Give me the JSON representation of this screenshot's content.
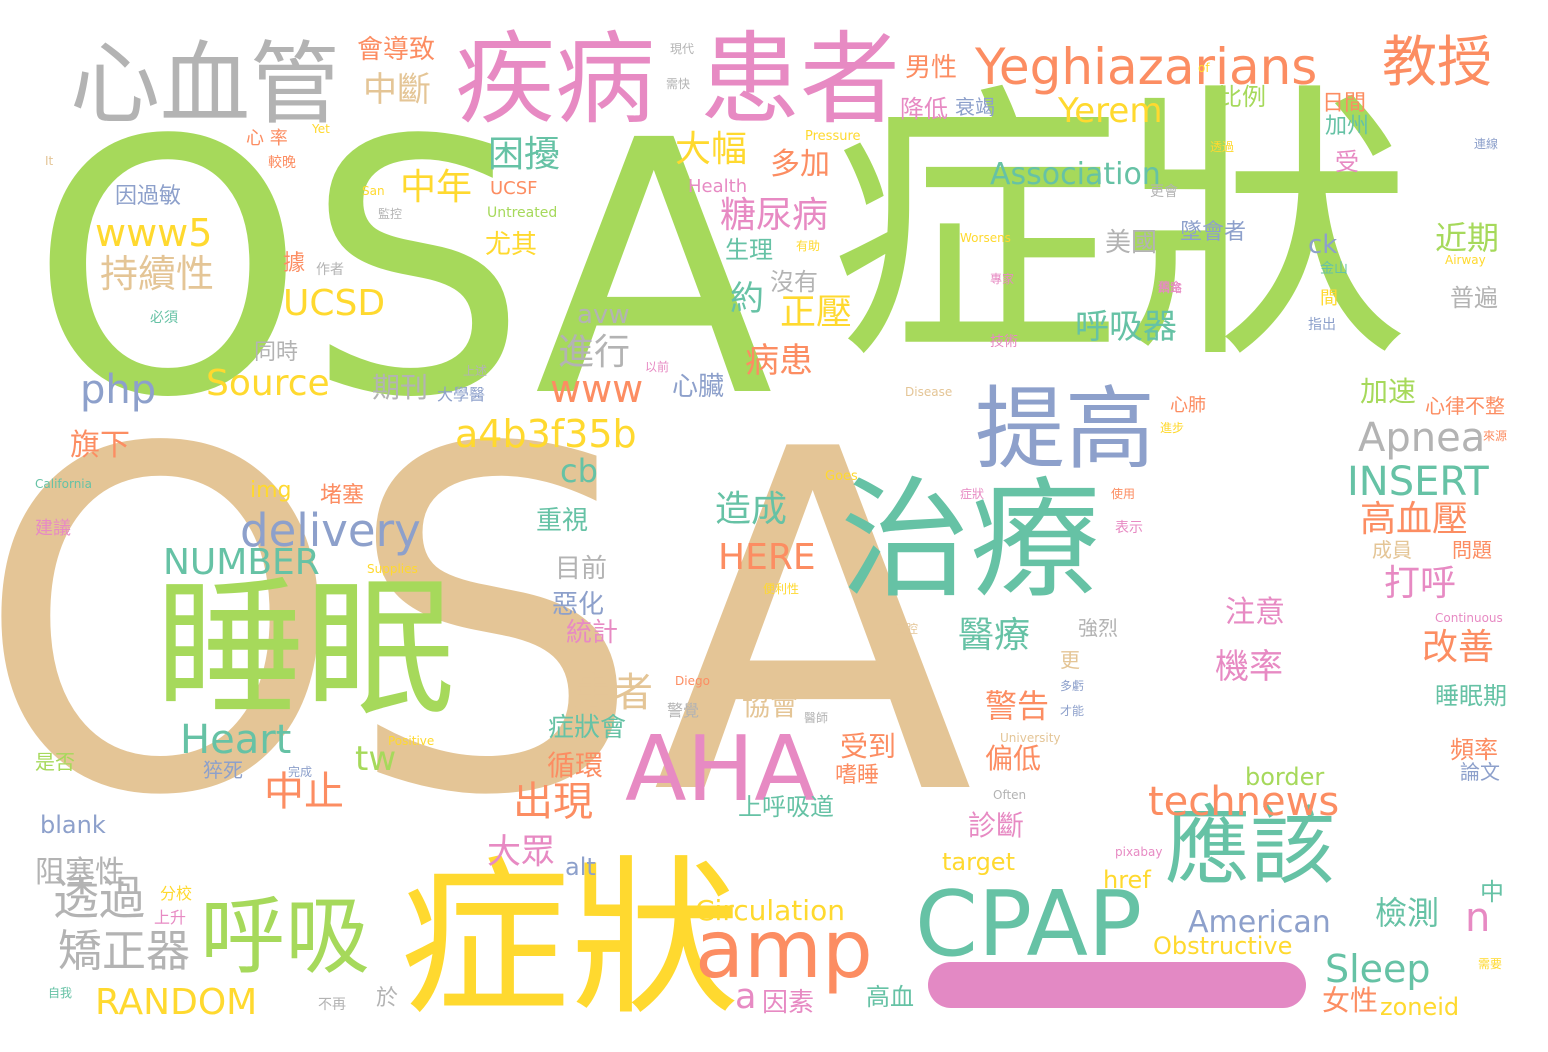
{
  "words": [
    {
      "text": "OSA",
      "color": "#a6d95b"
    },
    {
      "text": "OSA",
      "color": "#e4c596"
    },
    {
      "text": "症狀",
      "color": "#a6d95b"
    },
    {
      "text": "症狀",
      "color": "#ffd92f"
    },
    {
      "text": "睡眠",
      "color": "#a6d95b"
    },
    {
      "text": "治療",
      "color": "#66c2a5"
    },
    {
      "text": "患者",
      "color": "#e78ac3"
    },
    {
      "text": "疾病",
      "color": "#e78ac3"
    },
    {
      "text": "心血管",
      "color": "#b3b3b3"
    },
    {
      "text": "提高",
      "color": "#8da0cb"
    },
    {
      "text": "AHA",
      "color": "#e78ac3"
    },
    {
      "text": "CPAP",
      "color": "#66c2a5"
    },
    {
      "text": "應該",
      "color": "#66c2a5"
    },
    {
      "text": "呼吸",
      "color": "#a6d95b"
    },
    {
      "text": "amp",
      "color": "#fc8d62"
    },
    {
      "text": "Yeghiazarians",
      "color": "#fc8d62"
    },
    {
      "text": "教授",
      "color": "#fc8d62"
    },
    {
      "text": "technews",
      "color": "#fc8d62"
    },
    {
      "text": "delivery",
      "color": "#8da0cb"
    },
    {
      "text": "Apnea",
      "color": "#b3b3b3"
    },
    {
      "text": "INSERT",
      "color": "#66c2a5"
    },
    {
      "text": "a4b3f35b",
      "color": "#ffd92f"
    },
    {
      "text": "Heart",
      "color": "#66c2a5"
    },
    {
      "text": "NUMBER",
      "color": "#66c2a5"
    },
    {
      "text": "RANDOM",
      "color": "#ffd92f"
    },
    {
      "text": "Sleep",
      "color": "#66c2a5"
    },
    {
      "text": "HERE",
      "color": "#fc8d62"
    },
    {
      "text": "Source",
      "color": "#ffd92f"
    },
    {
      "text": "UCSD",
      "color": "#ffd92f"
    },
    {
      "text": "www5",
      "color": "#ffd92f"
    },
    {
      "text": "php",
      "color": "#8da0cb"
    },
    {
      "text": "www",
      "color": "#fc8d62"
    },
    {
      "text": "Yerem",
      "color": "#ffd92f"
    },
    {
      "text": "Association",
      "color": "#66c2a5"
    },
    {
      "text": "American",
      "color": "#8da0cb"
    },
    {
      "text": "Circulation",
      "color": "#ffd92f"
    },
    {
      "text": "Obstructive",
      "color": "#ffd92f"
    },
    {
      "text": "tw",
      "color": "#a6d95b"
    },
    {
      "text": "cb",
      "color": "#66c2a5"
    },
    {
      "text": "n",
      "color": "#e78ac3"
    },
    {
      "text": "a",
      "color": "#e78ac3"
    },
    {
      "text": "ck",
      "color": "#8da0cb"
    },
    {
      "text": "img",
      "color": "#ffd92f"
    },
    {
      "text": "src",
      "color": "#e4c596"
    },
    {
      "text": "avw",
      "color": "#b3b3b3"
    },
    {
      "text": "border",
      "color": "#a6d95b"
    },
    {
      "text": "target",
      "color": "#ffd92f"
    },
    {
      "text": "href",
      "color": "#ffd92f"
    },
    {
      "text": "alt",
      "color": "#8da0cb"
    },
    {
      "text": "blank",
      "color": "#8da0cb"
    },
    {
      "text": "zoneid",
      "color": "#ffd92f"
    },
    {
      "text": "UCSF",
      "color": "#fc8d62"
    },
    {
      "text": "Health",
      "color": "#e78ac3"
    },
    {
      "text": "Untreated",
      "color": "#a6d95b"
    },
    {
      "text": "Worsens",
      "color": "#ffd92f"
    },
    {
      "text": "Pressure",
      "color": "#ffd92f"
    },
    {
      "text": "Disease",
      "color": "#e4c596"
    },
    {
      "text": "Goes",
      "color": "#ffd92f"
    },
    {
      "text": "California",
      "color": "#66c2a5"
    },
    {
      "text": "San",
      "color": "#ffd92f"
    },
    {
      "text": "Yet",
      "color": "#ffd92f"
    },
    {
      "text": "It",
      "color": "#e4c596"
    },
    {
      "text": "of",
      "color": "#ffd92f"
    },
    {
      "text": "Diego",
      "color": "#fc8d62"
    },
    {
      "text": "Supplies",
      "color": "#ffd92f"
    },
    {
      "text": "Positive",
      "color": "#ffd92f"
    },
    {
      "text": "University",
      "color": "#e4c596"
    },
    {
      "text": "Often",
      "color": "#b3b3b3"
    },
    {
      "text": "pixabay",
      "color": "#e78ac3"
    },
    {
      "text": "Continuous",
      "color": "#e78ac3"
    },
    {
      "text": "Airway",
      "color": "#ffd92f"
    },
    {
      "text": "中斷",
      "color": "#e4c596"
    },
    {
      "text": "困擾",
      "color": "#66c2a5"
    },
    {
      "text": "中年",
      "color": "#ffd92f"
    },
    {
      "text": "大幅",
      "color": "#ffd92f"
    },
    {
      "text": "多加",
      "color": "#fc8d62"
    },
    {
      "text": "糖尿病",
      "color": "#e78ac3"
    },
    {
      "text": "持續性",
      "color": "#e4c596"
    },
    {
      "text": "約",
      "color": "#66c2a5"
    },
    {
      "text": "正壓",
      "color": "#ffd92f"
    },
    {
      "text": "呼吸器",
      "color": "#66c2a5"
    },
    {
      "text": "進行",
      "color": "#b3b3b3"
    },
    {
      "text": "病患",
      "color": "#fc8d62"
    },
    {
      "text": "沒有",
      "color": "#b3b3b3"
    },
    {
      "text": "男性",
      "color": "#fc8d62"
    },
    {
      "text": "降低",
      "color": "#e78ac3"
    },
    {
      "text": "衰竭",
      "color": "#8da0cb"
    },
    {
      "text": "比例",
      "color": "#a6d95b"
    },
    {
      "text": "日間",
      "color": "#fc8d62"
    },
    {
      "text": "加州",
      "color": "#66c2a5"
    },
    {
      "text": "美國",
      "color": "#b3b3b3"
    },
    {
      "text": "墜會者",
      "color": "#8da0cb"
    },
    {
      "text": "近期",
      "color": "#a6d95b"
    },
    {
      "text": "普遍",
      "color": "#b3b3b3"
    },
    {
      "text": "心臟",
      "color": "#8da0cb"
    },
    {
      "text": "期刊",
      "color": "#b3b3b3"
    },
    {
      "text": "旗下",
      "color": "#fc8d62"
    },
    {
      "text": "同時",
      "color": "#b3b3b3"
    },
    {
      "text": "造成",
      "color": "#66c2a5"
    },
    {
      "text": "高血壓",
      "color": "#fc8d62"
    },
    {
      "text": "打呼",
      "color": "#e78ac3"
    },
    {
      "text": "改善",
      "color": "#fc8d62"
    },
    {
      "text": "醫療",
      "color": "#66c2a5"
    },
    {
      "text": "機率",
      "color": "#e78ac3"
    },
    {
      "text": "注意",
      "color": "#e78ac3"
    },
    {
      "text": "警告",
      "color": "#fc8d62"
    },
    {
      "text": "患者",
      "color": "#e4c596"
    },
    {
      "text": "協會",
      "color": "#e4c596"
    },
    {
      "text": "受到",
      "color": "#fc8d62"
    },
    {
      "text": "嗜睡",
      "color": "#fc8d62"
    },
    {
      "text": "偏低",
      "color": "#fc8d62"
    },
    {
      "text": "中止",
      "color": "#fc8d62"
    },
    {
      "text": "出現",
      "color": "#fc8d62"
    },
    {
      "text": "大眾",
      "color": "#e78ac3"
    },
    {
      "text": "循環",
      "color": "#fc8d62"
    },
    {
      "text": "症狀會",
      "color": "#66c2a5"
    },
    {
      "text": "目前",
      "color": "#b3b3b3"
    },
    {
      "text": "惡化",
      "color": "#8da0cb"
    },
    {
      "text": "統計",
      "color": "#e78ac3"
    },
    {
      "text": "重視",
      "color": "#66c2a5"
    },
    {
      "text": "診斷",
      "color": "#e78ac3"
    },
    {
      "text": "上呼吸道",
      "color": "#66c2a5"
    },
    {
      "text": "檢測",
      "color": "#66c2a5"
    },
    {
      "text": "透過",
      "color": "#b3b3b3"
    },
    {
      "text": "矯正器",
      "color": "#b3b3b3"
    },
    {
      "text": "阻塞性",
      "color": "#b3b3b3"
    },
    {
      "text": "於",
      "color": "#b3b3b3"
    },
    {
      "text": "因素",
      "color": "#e78ac3"
    },
    {
      "text": "高血",
      "color": "#66c2a5"
    },
    {
      "text": "女性",
      "color": "#fc8d62"
    },
    {
      "text": "會導致",
      "color": "#fc8d62"
    },
    {
      "text": "因過敏",
      "color": "#8da0cb"
    },
    {
      "text": "據",
      "color": "#fc8d62"
    },
    {
      "text": "堵塞",
      "color": "#fc8d62"
    },
    {
      "text": "尤其",
      "color": "#ffd92f"
    },
    {
      "text": "生理",
      "color": "#66c2a5"
    },
    {
      "text": "加速",
      "color": "#a6d95b"
    },
    {
      "text": "心律不整",
      "color": "#fc8d62"
    },
    {
      "text": "睡眠期",
      "color": "#66c2a5"
    },
    {
      "text": "頻率",
      "color": "#fc8d62"
    },
    {
      "text": "論文",
      "color": "#8da0cb"
    },
    {
      "text": "問題",
      "color": "#fc8d62"
    },
    {
      "text": "成員",
      "color": "#e4c596"
    },
    {
      "text": "更",
      "color": "#e4c596"
    },
    {
      "text": "強烈",
      "color": "#b3b3b3"
    },
    {
      "text": "中",
      "color": "#66c2a5"
    },
    {
      "text": "受",
      "color": "#e78ac3"
    },
    {
      "text": "間",
      "color": "#ffd92f"
    },
    {
      "text": "心肺",
      "color": "#fc8d62"
    },
    {
      "text": "猝死",
      "color": "#8da0cb"
    },
    {
      "text": "分校",
      "color": "#ffd92f"
    },
    {
      "text": "上升",
      "color": "#e78ac3"
    },
    {
      "text": "建議",
      "color": "#e78ac3"
    },
    {
      "text": "是否",
      "color": "#a6d95b"
    },
    {
      "text": "心 率",
      "color": "#fc8d62"
    },
    {
      "text": "作者",
      "color": "#b3b3b3"
    },
    {
      "text": "必須",
      "color": "#66c2a5"
    },
    {
      "text": "警覺",
      "color": "#b3b3b3"
    },
    {
      "text": "不再",
      "color": "#b3b3b3"
    },
    {
      "text": "自我",
      "color": "#66c2a5"
    },
    {
      "text": "需要",
      "color": "#ffd92f"
    },
    {
      "text": "表示",
      "color": "#e78ac3"
    },
    {
      "text": "使用",
      "color": "#fc8d62"
    },
    {
      "text": "金山",
      "color": "#66c2a5"
    },
    {
      "text": "指出",
      "color": "#8da0cb"
    },
    {
      "text": "舊金",
      "color": "#e78ac3"
    },
    {
      "text": "大學醫",
      "color": "#8da0cb"
    },
    {
      "text": "上述",
      "color": "#b3b3b3"
    },
    {
      "text": "以前",
      "color": "#e78ac3"
    },
    {
      "text": "現代",
      "color": "#b3b3b3"
    },
    {
      "text": "需快",
      "color": "#b3b3b3"
    },
    {
      "text": "較晚",
      "color": "#fc8d62"
    },
    {
      "text": "有助",
      "color": "#ffd92f"
    },
    {
      "text": "進步",
      "color": "#ffd92f"
    },
    {
      "text": "來源",
      "color": "#fc8d62"
    },
    {
      "text": "連線",
      "color": "#8da0cb"
    },
    {
      "text": "更會",
      "color": "#b3b3b3"
    },
    {
      "text": "技術",
      "color": "#e78ac3"
    },
    {
      "text": "網路",
      "color": "#e78ac3"
    },
    {
      "text": "專家",
      "color": "#e78ac3"
    },
    {
      "text": "症狀",
      "color": "#e78ac3"
    },
    {
      "text": "完成",
      "color": "#8da0cb"
    },
    {
      "text": "多虧",
      "color": "#8da0cb"
    },
    {
      "text": "才能",
      "color": "#8da0cb"
    },
    {
      "text": "醫師",
      "color": "#b3b3b3"
    },
    {
      "text": "便利性",
      "color": "#ffd92f"
    },
    {
      "text": "口腔",
      "color": "#e4c596"
    },
    {
      "text": "監控",
      "color": "#b3b3b3"
    },
    {
      "text": "透過",
      "color": "#ffd92f"
    }
  ]
}
